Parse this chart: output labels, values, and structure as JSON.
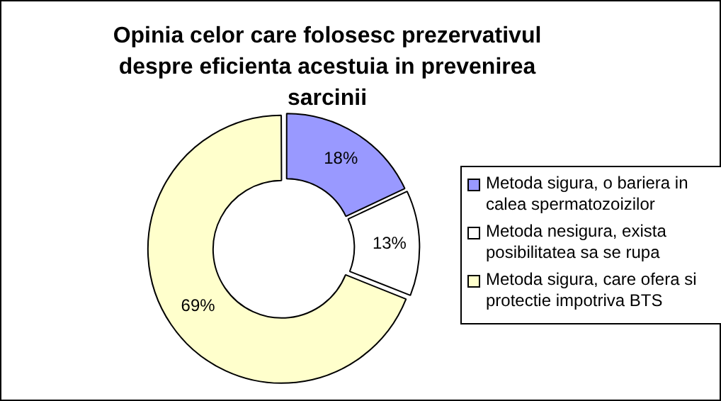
{
  "chart_data": {
    "type": "donut",
    "title": "Opinia celor care folosesc prezervativul despre eficienta acestuia in prevenirea sarcinii",
    "categories": [
      "Metoda sigura, o bariera in calea spermatozoizilor",
      "Metoda nesigura, exista posibilitatea sa se rupa",
      "Metoda sigura, care ofera si protectie impotriva BTS"
    ],
    "values": [
      18,
      13,
      69
    ],
    "colors": [
      "#9999ff",
      "#ffffff",
      "#ffffcc"
    ],
    "value_labels": [
      "18%",
      "13%",
      "69%"
    ],
    "legend": "right"
  }
}
